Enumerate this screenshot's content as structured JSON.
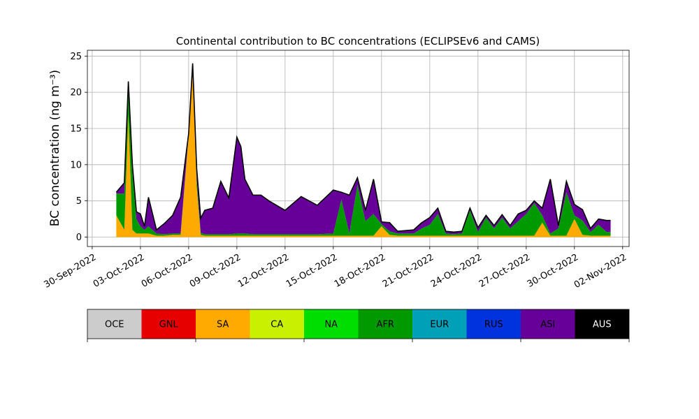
{
  "chart_data": {
    "type": "area",
    "title": "Continental contribution to BC concentrations (ECLIPSEv6 and CAMS)",
    "ylabel": "BC concentration (ng m⁻³)",
    "xlabel": "",
    "ylim": [
      -1.3,
      25.8
    ],
    "xlim_days": [
      -0.3,
      33.4
    ],
    "x_tick_labels": [
      "30-Sep-2022",
      "03-Oct-2022",
      "06-Oct-2022",
      "09-Oct-2022",
      "12-Oct-2022",
      "15-Oct-2022",
      "18-Oct-2022",
      "21-Oct-2022",
      "24-Oct-2022",
      "27-Oct-2022",
      "30-Oct-2022",
      "02-Nov-2022"
    ],
    "y_ticks": [
      0,
      5,
      10,
      15,
      20,
      25
    ],
    "grid": true,
    "stacking": "stacked",
    "x": [
      "2022-10-01 12:00",
      "2022-10-02 00:00",
      "2022-10-02 06:00",
      "2022-10-02 12:00",
      "2022-10-02 18:00",
      "2022-10-03 00:00",
      "2022-10-03 06:00",
      "2022-10-03 12:00",
      "2022-10-04 00:00",
      "2022-10-04 12:00",
      "2022-10-05 00:00",
      "2022-10-05 12:00",
      "2022-10-06 00:00",
      "2022-10-06 06:00",
      "2022-10-06 12:00",
      "2022-10-06 18:00",
      "2022-10-07 00:00",
      "2022-10-07 12:00",
      "2022-10-08 00:00",
      "2022-10-08 12:00",
      "2022-10-09 00:00",
      "2022-10-09 06:00",
      "2022-10-09 12:00",
      "2022-10-10 00:00",
      "2022-10-10 12:00",
      "2022-10-11 00:00",
      "2022-10-12 00:00",
      "2022-10-13 00:00",
      "2022-10-14 00:00",
      "2022-10-15 00:00",
      "2022-10-15 12:00",
      "2022-10-16 00:00",
      "2022-10-16 12:00",
      "2022-10-17 00:00",
      "2022-10-17 12:00",
      "2022-10-18 00:00",
      "2022-10-18 12:00",
      "2022-10-19 00:00",
      "2022-10-19 12:00",
      "2022-10-20 00:00",
      "2022-10-20 12:00",
      "2022-10-21 00:00",
      "2022-10-21 12:00",
      "2022-10-22 00:00",
      "2022-10-22 12:00",
      "2022-10-23 00:00",
      "2022-10-23 12:00",
      "2022-10-24 00:00",
      "2022-10-24 12:00",
      "2022-10-25 00:00",
      "2022-10-25 12:00",
      "2022-10-26 00:00",
      "2022-10-26 12:00",
      "2022-10-27 00:00",
      "2022-10-27 12:00",
      "2022-10-28 00:00",
      "2022-10-28 12:00",
      "2022-10-29 00:00",
      "2022-10-29 12:00",
      "2022-10-30 00:00",
      "2022-10-30 12:00",
      "2022-10-31 00:00",
      "2022-10-31 12:00",
      "2022-11-01 00:00",
      "2022-11-01 06:00"
    ],
    "series": [
      {
        "name": "OCE",
        "color": "#cccccc",
        "values": [
          0,
          0,
          0,
          0,
          0,
          0,
          0,
          0,
          0,
          0,
          0,
          0,
          0,
          0,
          0,
          0,
          0,
          0,
          0,
          0,
          0,
          0,
          0,
          0,
          0,
          0,
          0,
          0,
          0,
          0,
          0,
          0,
          0,
          0,
          0,
          0,
          0,
          0,
          0,
          0,
          0,
          0,
          0,
          0,
          0,
          0,
          0,
          0,
          0,
          0,
          0,
          0,
          0,
          0,
          0,
          0,
          0,
          0,
          0,
          0,
          0,
          0,
          0,
          0,
          0
        ]
      },
      {
        "name": "GNL",
        "color": "#e60000",
        "values": [
          0,
          0,
          0,
          0,
          0,
          0,
          0,
          0,
          0,
          0,
          0,
          0,
          0,
          0,
          0,
          0,
          0,
          0,
          0,
          0,
          0,
          0,
          0,
          0,
          0,
          0,
          0,
          0,
          0,
          0,
          0,
          0,
          0,
          0,
          0,
          0,
          0,
          0,
          0,
          0,
          0,
          0,
          0,
          0,
          0,
          0,
          0,
          0,
          0,
          0,
          0,
          0,
          0,
          0,
          0,
          0,
          0,
          0,
          0,
          0,
          0,
          0,
          0,
          0,
          0
        ]
      },
      {
        "name": "SA",
        "color": "#ffaa00",
        "values": [
          3,
          1,
          17,
          1,
          0.5,
          0.5,
          0.5,
          0.5,
          0.2,
          0.2,
          0.3,
          0.3,
          14,
          24,
          7,
          0.3,
          0.2,
          0.2,
          0.2,
          0.2,
          0.2,
          0.2,
          0.2,
          0.2,
          0.2,
          0.2,
          0.2,
          0.2,
          0.2,
          0.2,
          0.2,
          0.2,
          0.2,
          0.2,
          0.2,
          1.5,
          0.3,
          0.2,
          0.2,
          0.2,
          0.2,
          0.2,
          0.2,
          0.2,
          0.2,
          0.2,
          0.2,
          0.2,
          0.2,
          0.2,
          0.2,
          0.2,
          0.2,
          0.2,
          0.2,
          2,
          0.2,
          0.2,
          0.2,
          2.5,
          0.3,
          0.2,
          0.2,
          0.2,
          0.2
        ]
      },
      {
        "name": "CA",
        "color": "#c8f000",
        "values": [
          0,
          0,
          0,
          0,
          0,
          0,
          0,
          0,
          0,
          0,
          0,
          0,
          0,
          0,
          0,
          0,
          0,
          0,
          0,
          0,
          0,
          0,
          0,
          0,
          0,
          0,
          0,
          0,
          0,
          0,
          0,
          0,
          0,
          0,
          0,
          0,
          0,
          0,
          0,
          0,
          0,
          0,
          0,
          0,
          0,
          0,
          0,
          0,
          0,
          0,
          0,
          0,
          0,
          0,
          0,
          0,
          0,
          0,
          0,
          0,
          0,
          0,
          0,
          0,
          0
        ]
      },
      {
        "name": "NA",
        "color": "#00dd00",
        "values": [
          0,
          0,
          0,
          0,
          0,
          0,
          0,
          0,
          0,
          0,
          0,
          0,
          0,
          0,
          0,
          0,
          0,
          0,
          0,
          0,
          0,
          0,
          0,
          0,
          0,
          0,
          0,
          0,
          0,
          0,
          0,
          0,
          0,
          0,
          0,
          0,
          0,
          0,
          0,
          0,
          0,
          0,
          0,
          0,
          0,
          0,
          0,
          0,
          0,
          0,
          0,
          0,
          0,
          0,
          0,
          0,
          0,
          0,
          0,
          0,
          0,
          0,
          0,
          0,
          0
        ]
      },
      {
        "name": "AFR",
        "color": "#009900",
        "values": [
          3,
          5,
          4,
          8,
          2,
          1,
          0.5,
          1,
          0.3,
          0.2,
          0.2,
          0.2,
          0.3,
          0,
          1,
          0.3,
          0.2,
          0.2,
          0.2,
          0.2,
          0.3,
          0.3,
          0.3,
          0.2,
          0.2,
          0.2,
          0.2,
          0.2,
          0.2,
          0.3,
          5,
          0.3,
          7,
          2,
          3,
          0.3,
          0.5,
          0.3,
          0.3,
          0.3,
          1,
          1.5,
          3,
          0.3,
          0.2,
          0.3,
          3.5,
          0.5,
          2.5,
          1,
          2.5,
          1,
          2,
          3,
          4.5,
          1,
          0.3,
          1,
          6,
          0.5,
          2,
          0.5,
          1.5,
          0.5,
          0.5
        ]
      },
      {
        "name": "EUR",
        "color": "#00a0b8",
        "values": [
          0,
          0,
          0,
          0,
          0,
          0,
          0,
          0,
          0,
          0,
          0,
          0,
          0,
          0,
          0,
          0,
          0,
          0,
          0,
          0,
          0,
          0,
          0,
          0,
          0,
          0,
          0,
          0,
          0,
          0,
          0,
          0,
          0,
          0,
          0,
          0,
          0,
          0,
          0,
          0,
          0,
          0,
          0,
          0,
          0,
          0,
          0,
          0,
          0,
          0,
          0,
          0,
          0,
          0,
          0,
          0,
          0,
          0,
          0,
          0,
          0,
          0,
          0,
          0,
          0
        ]
      },
      {
        "name": "RUS",
        "color": "#0033dd",
        "values": [
          0,
          0,
          0,
          0,
          0,
          0,
          0,
          0,
          0,
          0,
          0,
          0,
          0,
          0,
          0,
          0,
          0,
          0,
          0,
          0,
          0,
          0,
          0,
          0,
          0,
          0,
          0,
          0,
          0,
          0,
          0,
          0,
          0,
          0,
          0,
          0,
          0,
          0,
          0,
          0,
          0,
          0,
          0,
          0,
          0,
          0,
          0,
          0,
          0,
          0,
          0,
          0,
          0,
          0,
          0,
          0,
          0,
          0,
          0,
          0,
          0,
          0,
          0,
          0,
          0
        ]
      },
      {
        "name": "ASI",
        "color": "#660099",
        "values": [
          0.2,
          1.5,
          0.5,
          1,
          1,
          1.7,
          0.5,
          4,
          0.5,
          1.5,
          2.5,
          5,
          0,
          0,
          1.5,
          2,
          3.3,
          3.6,
          7.3,
          5,
          13.3,
          12,
          7.5,
          5.4,
          5.4,
          4.6,
          3.3,
          5.2,
          4,
          6,
          1,
          5.3,
          1,
          1.5,
          4.8,
          0.3,
          1.2,
          0.3,
          0.4,
          0.5,
          0.8,
          1,
          0.8,
          0.3,
          0.3,
          0.3,
          0.3,
          0.6,
          0.3,
          0.4,
          0.4,
          0.4,
          1,
          0.5,
          0.3,
          1,
          7.5,
          0.4,
          1.5,
          1.5,
          1.5,
          0.5,
          0.8,
          1.6,
          1.6
        ]
      },
      {
        "name": "AUS",
        "color": "#000000",
        "values": [
          0,
          0,
          0,
          0,
          0,
          0,
          0,
          0,
          0,
          0,
          0,
          0,
          0,
          0,
          0,
          0,
          0,
          0,
          0,
          0,
          0,
          0,
          0,
          0,
          0,
          0,
          0,
          0,
          0,
          0,
          0,
          0,
          0,
          0,
          0,
          0,
          0,
          0,
          0,
          0,
          0,
          0,
          0,
          0,
          0,
          0,
          0,
          0,
          0,
          0,
          0,
          0,
          0,
          0,
          0,
          0,
          0,
          0,
          0,
          0,
          0,
          0,
          0,
          0,
          0
        ]
      }
    ]
  }
}
